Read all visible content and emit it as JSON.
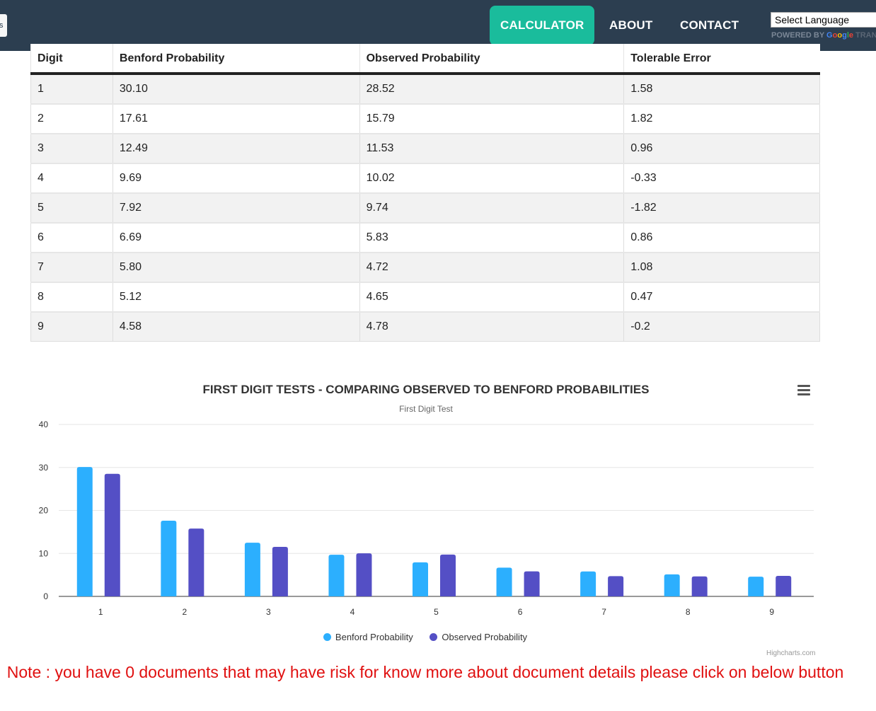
{
  "nav": {
    "edge_tab": "s",
    "links": [
      {
        "label": "CALCULATOR",
        "active": true
      },
      {
        "label": "ABOUT",
        "active": false
      },
      {
        "label": "CONTACT",
        "active": false
      }
    ],
    "language_select": "Select Language",
    "powered_by": "POWERED BY",
    "google": "Google",
    "translate": "TRAN"
  },
  "table": {
    "headers": [
      "Digit",
      "Benford Probability",
      "Observed Probability",
      "Tolerable Error"
    ],
    "rows": [
      [
        "1",
        "30.10",
        "28.52",
        "1.58"
      ],
      [
        "2",
        "17.61",
        "15.79",
        "1.82"
      ],
      [
        "3",
        "12.49",
        "11.53",
        "0.96"
      ],
      [
        "4",
        "9.69",
        "10.02",
        "-0.33"
      ],
      [
        "5",
        "7.92",
        "9.74",
        "-1.82"
      ],
      [
        "6",
        "6.69",
        "5.83",
        "0.86"
      ],
      [
        "7",
        "5.80",
        "4.72",
        "1.08"
      ],
      [
        "8",
        "5.12",
        "4.65",
        "0.47"
      ],
      [
        "9",
        "4.58",
        "4.78",
        "-0.2"
      ]
    ]
  },
  "chart_data": {
    "type": "bar",
    "title": "FIRST DIGIT TESTS - COMPARING OBSERVED TO BENFORD PROBABILITIES",
    "subtitle": "First Digit Test",
    "categories": [
      "1",
      "2",
      "3",
      "4",
      "5",
      "6",
      "7",
      "8",
      "9"
    ],
    "series": [
      {
        "name": "Benford Probability",
        "color": "#2caffe",
        "values": [
          30.1,
          17.61,
          12.49,
          9.69,
          7.92,
          6.69,
          5.8,
          5.12,
          4.58
        ]
      },
      {
        "name": "Observed Probability",
        "color": "#544fc5",
        "values": [
          28.52,
          15.79,
          11.53,
          10.02,
          9.74,
          5.83,
          4.72,
          4.65,
          4.78
        ]
      }
    ],
    "yticks": [
      0,
      10,
      20,
      30,
      40
    ],
    "ylim": [
      0,
      40
    ],
    "grid": true,
    "legend": "bottom-center",
    "credits": "Highcharts.com"
  },
  "note": "Note : you have 0 documents that may have risk for know more about document details please click on below button"
}
